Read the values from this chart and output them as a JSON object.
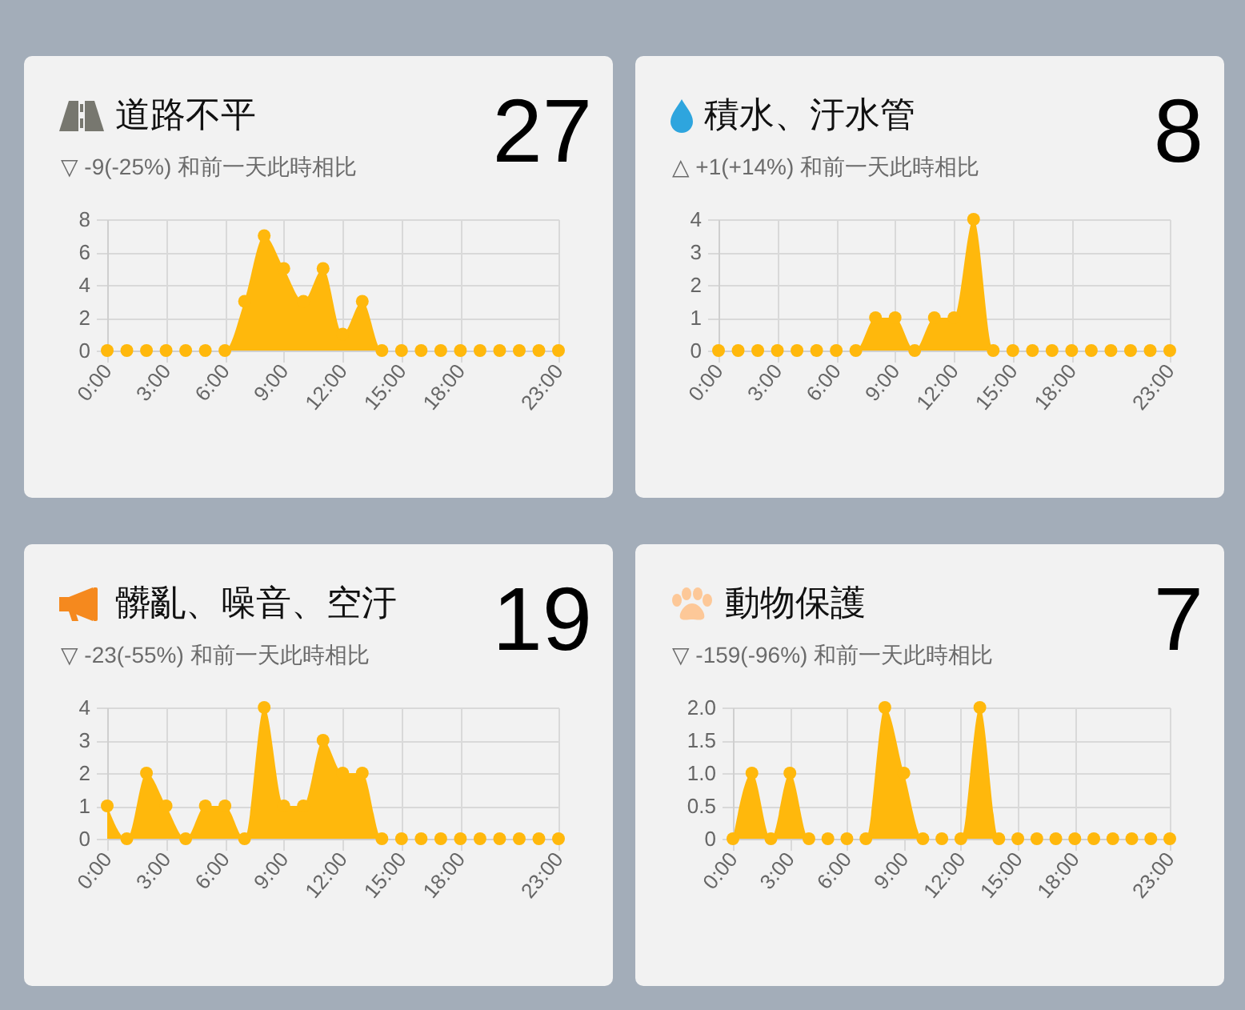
{
  "chart_data": [
    {
      "type": "area",
      "title": "道路不平",
      "subtitle": "▽ -9(-25%) 和前一天此時相比",
      "annotations": [
        "27"
      ],
      "x": [
        0,
        1,
        2,
        3,
        4,
        5,
        6,
        7,
        8,
        9,
        10,
        11,
        12,
        13,
        14,
        15,
        16,
        17,
        18,
        19,
        20,
        21,
        22,
        23
      ],
      "values": [
        0,
        0,
        0,
        0,
        0,
        0,
        0,
        3,
        7,
        5,
        3,
        5,
        1,
        3,
        0,
        0,
        0,
        0,
        0,
        0,
        0,
        0,
        0,
        0
      ],
      "color": "#ffb80c",
      "xlim": [
        0,
        23
      ],
      "xticks": [
        {
          "value": 0,
          "label": "0:00"
        },
        {
          "value": 3,
          "label": "3:00"
        },
        {
          "value": 6,
          "label": "6:00"
        },
        {
          "value": 9,
          "label": "9:00"
        },
        {
          "value": 12,
          "label": "12:00"
        },
        {
          "value": 15,
          "label": "15:00"
        },
        {
          "value": 18,
          "label": "18:00"
        },
        {
          "value": 23,
          "label": "23:00"
        }
      ],
      "ylim": [
        0,
        8
      ],
      "yticks": [
        0,
        2,
        4,
        6,
        8
      ],
      "grid": true,
      "marker": "circle"
    },
    {
      "type": "area",
      "title": "積水、汙水管",
      "subtitle": "△ +1(+14%) 和前一天此時相比",
      "annotations": [
        "8"
      ],
      "x": [
        0,
        1,
        2,
        3,
        4,
        5,
        6,
        7,
        8,
        9,
        10,
        11,
        12,
        13,
        14,
        15,
        16,
        17,
        18,
        19,
        20,
        21,
        22,
        23
      ],
      "values": [
        0,
        0,
        0,
        0,
        0,
        0,
        0,
        0,
        1,
        1,
        0,
        1,
        1,
        4,
        0,
        0,
        0,
        0,
        0,
        0,
        0,
        0,
        0,
        0
      ],
      "color": "#ffb80c",
      "xlim": [
        0,
        23
      ],
      "xticks": [
        {
          "value": 0,
          "label": "0:00"
        },
        {
          "value": 3,
          "label": "3:00"
        },
        {
          "value": 6,
          "label": "6:00"
        },
        {
          "value": 9,
          "label": "9:00"
        },
        {
          "value": 12,
          "label": "12:00"
        },
        {
          "value": 15,
          "label": "15:00"
        },
        {
          "value": 18,
          "label": "18:00"
        },
        {
          "value": 23,
          "label": "23:00"
        }
      ],
      "ylim": [
        0,
        4
      ],
      "yticks": [
        0,
        1,
        2,
        3,
        4
      ],
      "grid": true,
      "marker": "circle"
    },
    {
      "type": "area",
      "title": "髒亂、噪音、空汙",
      "subtitle": "▽ -23(-55%) 和前一天此時相比",
      "annotations": [
        "19"
      ],
      "x": [
        0,
        1,
        2,
        3,
        4,
        5,
        6,
        7,
        8,
        9,
        10,
        11,
        12,
        13,
        14,
        15,
        16,
        17,
        18,
        19,
        20,
        21,
        22,
        23
      ],
      "values": [
        1,
        0,
        2,
        1,
        0,
        1,
        1,
        0,
        4,
        1,
        1,
        3,
        2,
        2,
        0,
        0,
        0,
        0,
        0,
        0,
        0,
        0,
        0,
        0
      ],
      "color": "#ffb80c",
      "xlim": [
        0,
        23
      ],
      "xticks": [
        {
          "value": 0,
          "label": "0:00"
        },
        {
          "value": 3,
          "label": "3:00"
        },
        {
          "value": 6,
          "label": "6:00"
        },
        {
          "value": 9,
          "label": "9:00"
        },
        {
          "value": 12,
          "label": "12:00"
        },
        {
          "value": 15,
          "label": "15:00"
        },
        {
          "value": 18,
          "label": "18:00"
        },
        {
          "value": 23,
          "label": "23:00"
        }
      ],
      "ylim": [
        0,
        4
      ],
      "yticks": [
        0,
        1,
        2,
        3,
        4
      ],
      "grid": true,
      "marker": "circle"
    },
    {
      "type": "area",
      "title": "動物保護",
      "subtitle": "▽ -159(-96%) 和前一天此時相比",
      "annotations": [
        "7"
      ],
      "x": [
        0,
        1,
        2,
        3,
        4,
        5,
        6,
        7,
        8,
        9,
        10,
        11,
        12,
        13,
        14,
        15,
        16,
        17,
        18,
        19,
        20,
        21,
        22,
        23
      ],
      "values": [
        0,
        1,
        0,
        1,
        0,
        0,
        0,
        0,
        2,
        1,
        0,
        0,
        0,
        2,
        0,
        0,
        0,
        0,
        0,
        0,
        0,
        0,
        0,
        0
      ],
      "color": "#ffb80c",
      "xlim": [
        0,
        23
      ],
      "xticks": [
        {
          "value": 0,
          "label": "0:00"
        },
        {
          "value": 3,
          "label": "3:00"
        },
        {
          "value": 6,
          "label": "6:00"
        },
        {
          "value": 9,
          "label": "9:00"
        },
        {
          "value": 12,
          "label": "12:00"
        },
        {
          "value": 15,
          "label": "15:00"
        },
        {
          "value": 18,
          "label": "18:00"
        },
        {
          "value": 23,
          "label": "23:00"
        }
      ],
      "ylim": [
        0,
        2
      ],
      "yticks": [
        0,
        0.5,
        {
          "value": 1,
          "label": "1.0"
        },
        1.5,
        {
          "value": 2,
          "label": "2.0"
        }
      ],
      "grid": true,
      "marker": "circle"
    }
  ]
}
